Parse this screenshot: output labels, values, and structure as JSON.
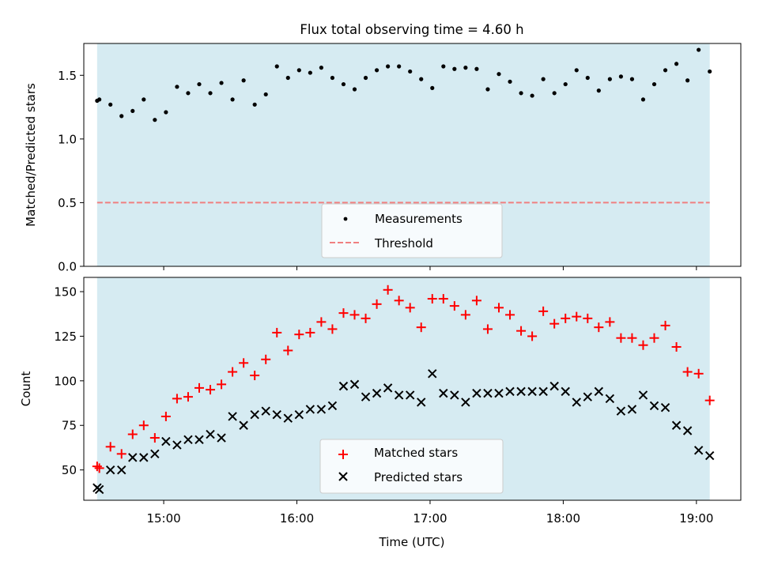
{
  "chart_data": [
    {
      "type": "scatter",
      "title": "Flux total observing time = 4.60 h",
      "xlabel": "",
      "ylabel": "Matched/Predicted stars",
      "xlim": [
        "14:24",
        "19:20"
      ],
      "ylim": [
        0,
        1.75
      ],
      "yticks": [
        "0.0",
        "0.5",
        "1.0",
        "1.5"
      ],
      "ytick_values": [
        0,
        0.5,
        1.0,
        1.5
      ],
      "xticks": [
        "15:00",
        "16:00",
        "17:00",
        "18:00",
        "19:00"
      ],
      "observing_window": [
        "14:30",
        "19:06"
      ],
      "threshold": 0.5,
      "legend": {
        "position": "lower center",
        "entries": [
          "Measurements",
          "Threshold"
        ]
      },
      "series": [
        {
          "name": "Measurements",
          "marker": "dot",
          "color": "#000000",
          "x": [
            "14:30",
            "14:31",
            "14:36",
            "14:41",
            "14:46",
            "14:51",
            "14:56",
            "15:01",
            "15:06",
            "15:11",
            "15:16",
            "15:21",
            "15:26",
            "15:31",
            "15:36",
            "15:41",
            "15:46",
            "15:51",
            "15:56",
            "16:01",
            "16:06",
            "16:11",
            "16:16",
            "16:21",
            "16:26",
            "16:31",
            "16:36",
            "16:41",
            "16:46",
            "16:51",
            "16:56",
            "17:01",
            "17:06",
            "17:11",
            "17:16",
            "17:21",
            "17:26",
            "17:31",
            "17:36",
            "17:41",
            "17:46",
            "17:51",
            "17:56",
            "18:01",
            "18:06",
            "18:11",
            "18:16",
            "18:21",
            "18:26",
            "18:31",
            "18:36",
            "18:41",
            "18:46",
            "18:51",
            "18:56",
            "19:01",
            "19:06"
          ],
          "y": [
            1.3,
            1.31,
            1.27,
            1.18,
            1.22,
            1.31,
            1.15,
            1.21,
            1.41,
            1.36,
            1.43,
            1.36,
            1.44,
            1.31,
            1.46,
            1.27,
            1.35,
            1.57,
            1.48,
            1.54,
            1.52,
            1.56,
            1.48,
            1.43,
            1.39,
            1.48,
            1.54,
            1.57,
            1.57,
            1.53,
            1.47,
            1.4,
            1.57,
            1.55,
            1.56,
            1.55,
            1.39,
            1.51,
            1.45,
            1.36,
            1.34,
            1.47,
            1.36,
            1.43,
            1.54,
            1.48,
            1.38,
            1.47,
            1.49,
            1.47,
            1.31,
            1.43,
            1.54,
            1.59,
            1.46,
            1.7,
            1.53
          ]
        },
        {
          "name": "Threshold",
          "marker": "dashed-line",
          "color": "#f08080",
          "y": 0.5
        }
      ]
    },
    {
      "type": "scatter",
      "title": "",
      "xlabel": "Time (UTC)",
      "ylabel": "Count",
      "xlim": [
        "14:24",
        "19:20"
      ],
      "ylim": [
        33,
        158
      ],
      "yticks": [
        "50",
        "75",
        "100",
        "125",
        "150"
      ],
      "ytick_values": [
        50,
        75,
        100,
        125,
        150
      ],
      "xticks": [
        "15:00",
        "16:00",
        "17:00",
        "18:00",
        "19:00"
      ],
      "observing_window": [
        "14:30",
        "19:06"
      ],
      "legend": {
        "position": "lower center",
        "entries": [
          "Matched stars",
          "Predicted stars"
        ]
      },
      "series": [
        {
          "name": "Matched stars",
          "marker": "plus",
          "color": "#ff0000",
          "x": [
            "14:30",
            "14:31",
            "14:36",
            "14:41",
            "14:46",
            "14:51",
            "14:56",
            "15:01",
            "15:06",
            "15:11",
            "15:16",
            "15:21",
            "15:26",
            "15:31",
            "15:36",
            "15:41",
            "15:46",
            "15:51",
            "15:56",
            "16:01",
            "16:06",
            "16:11",
            "16:16",
            "16:21",
            "16:26",
            "16:31",
            "16:36",
            "16:41",
            "16:46",
            "16:51",
            "16:56",
            "17:01",
            "17:06",
            "17:11",
            "17:16",
            "17:21",
            "17:26",
            "17:31",
            "17:36",
            "17:41",
            "17:46",
            "17:51",
            "17:56",
            "18:01",
            "18:06",
            "18:11",
            "18:16",
            "18:21",
            "18:26",
            "18:31",
            "18:36",
            "18:41",
            "18:46",
            "18:51",
            "18:56",
            "19:01",
            "19:06"
          ],
          "y": [
            52,
            51,
            63,
            59,
            70,
            75,
            68,
            80,
            90,
            91,
            96,
            95,
            98,
            105,
            110,
            103,
            112,
            127,
            117,
            126,
            127,
            133,
            129,
            138,
            137,
            135,
            143,
            151,
            145,
            141,
            130,
            146,
            146,
            142,
            137,
            145,
            129,
            141,
            137,
            128,
            125,
            139,
            132,
            135,
            136,
            135,
            130,
            133,
            124,
            124,
            120,
            124,
            131,
            119,
            105,
            104,
            89
          ]
        },
        {
          "name": "Predicted stars",
          "marker": "x",
          "color": "#000000",
          "x": [
            "14:30",
            "14:31",
            "14:36",
            "14:41",
            "14:46",
            "14:51",
            "14:56",
            "15:01",
            "15:06",
            "15:11",
            "15:16",
            "15:21",
            "15:26",
            "15:31",
            "15:36",
            "15:41",
            "15:46",
            "15:51",
            "15:56",
            "16:01",
            "16:06",
            "16:11",
            "16:16",
            "16:21",
            "16:26",
            "16:31",
            "16:36",
            "16:41",
            "16:46",
            "16:51",
            "16:56",
            "17:01",
            "17:06",
            "17:11",
            "17:16",
            "17:21",
            "17:26",
            "17:31",
            "17:36",
            "17:41",
            "17:46",
            "17:51",
            "17:56",
            "18:01",
            "18:06",
            "18:11",
            "18:16",
            "18:21",
            "18:26",
            "18:31",
            "18:36",
            "18:41",
            "18:46",
            "18:51",
            "18:56",
            "19:01",
            "19:06"
          ],
          "y": [
            40,
            39,
            50,
            50,
            57,
            57,
            59,
            66,
            64,
            67,
            67,
            70,
            68,
            80,
            75,
            81,
            83,
            81,
            79,
            81,
            84,
            84,
            86,
            97,
            98,
            91,
            93,
            96,
            92,
            92,
            88,
            104,
            93,
            92,
            88,
            93,
            93,
            93,
            94,
            94,
            94,
            94,
            97,
            94,
            88,
            91,
            94,
            90,
            83,
            84,
            92,
            86,
            85,
            75,
            72,
            61,
            58
          ]
        }
      ]
    }
  ],
  "colors": {
    "observing_window": "#add8e6",
    "measurements": "#000000",
    "threshold": "#f08080",
    "matched": "#ff0000",
    "predicted": "#000000"
  }
}
